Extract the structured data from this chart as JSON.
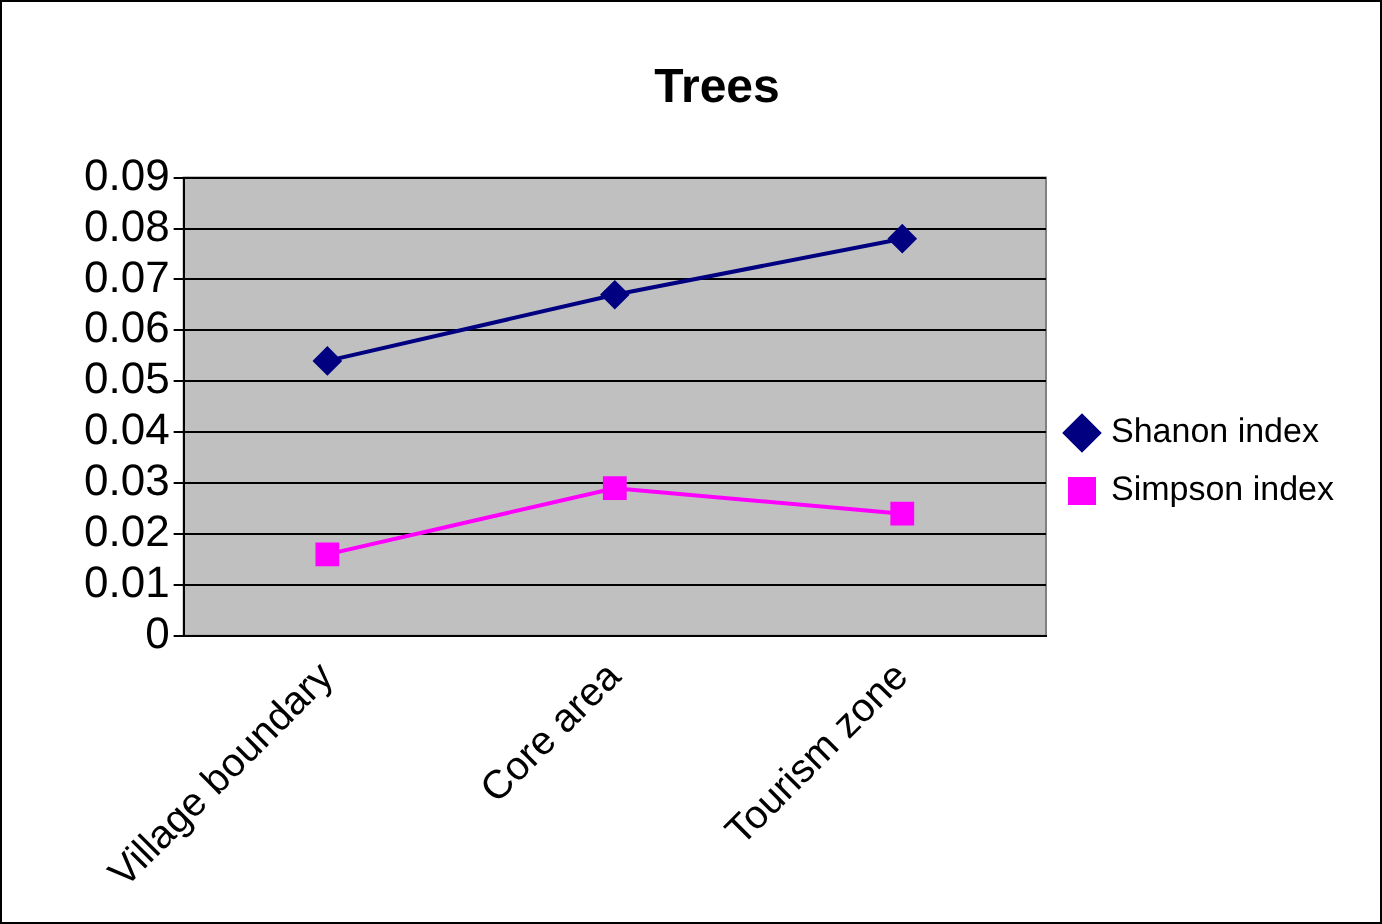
{
  "chart_data": {
    "type": "line",
    "title": "Trees",
    "categories": [
      "Village boundary",
      "Core area",
      "Tourism zone"
    ],
    "series": [
      {
        "name": "Shanon index",
        "color": "#000080",
        "marker": "diamond",
        "values": [
          0.054,
          0.067,
          0.078
        ]
      },
      {
        "name": "Simpson index",
        "color": "#ff00ff",
        "marker": "square",
        "values": [
          0.016,
          0.029,
          0.024
        ]
      }
    ],
    "ylim": [
      0,
      0.09
    ],
    "yticks": [
      0,
      0.01,
      0.02,
      0.03,
      0.04,
      0.05,
      0.06,
      0.07,
      0.08,
      0.09
    ],
    "grid": "y",
    "legend": "right"
  }
}
